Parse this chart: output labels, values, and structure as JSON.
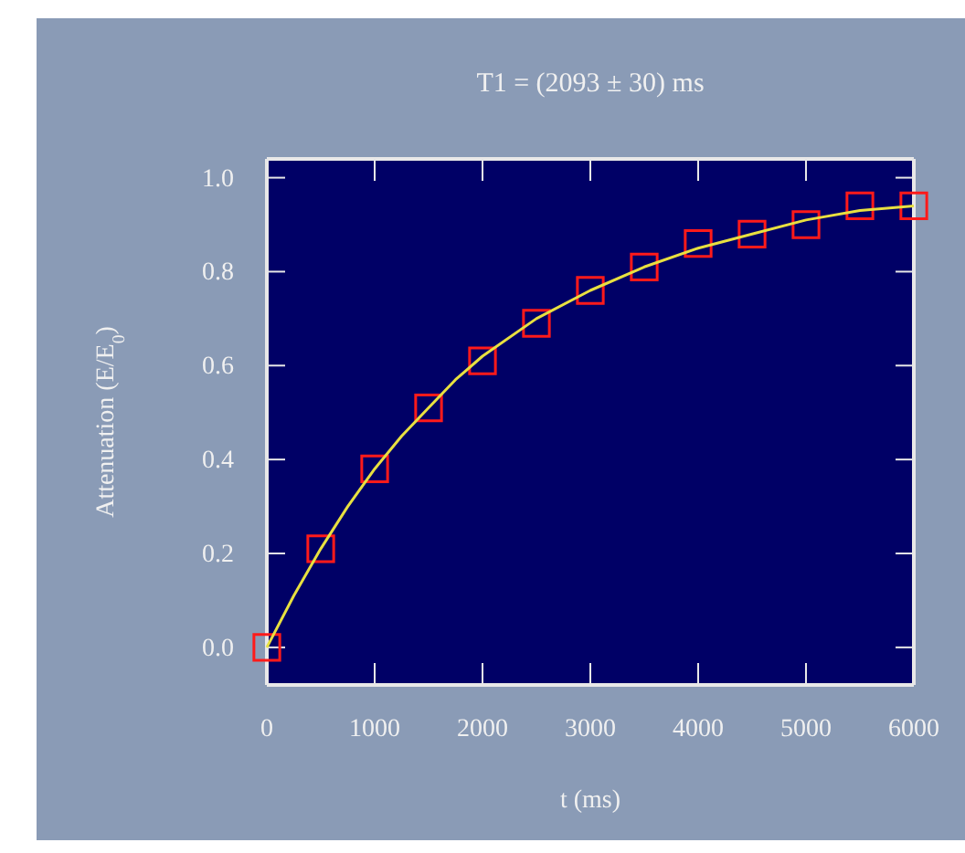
{
  "chart_data": {
    "type": "scatter",
    "title": "T1 = (2093 ± 30) ms",
    "xlabel": "t (ms)",
    "ylabel": "Attenuation (E/E$_{0}$)",
    "xlim": [
      0,
      6000
    ],
    "xticks": [
      0,
      1000,
      2000,
      3000,
      4000,
      5000,
      6000
    ],
    "ylim": [
      -0.08,
      1.04
    ],
    "yticks": [
      {
        "value": 0,
        "label": "0.0"
      },
      {
        "value": 0.2,
        "label": "0.2"
      },
      {
        "value": 0.4,
        "label": "0.4"
      },
      {
        "value": 0.6,
        "label": "0.6"
      },
      {
        "value": 0.8,
        "label": "0.8"
      },
      {
        "value": 1,
        "label": "1.0"
      }
    ],
    "grid": false,
    "marker": "square",
    "series": [
      {
        "color": "#ff1a1a",
        "x": [
          0,
          500,
          1000,
          1500,
          2000,
          2500,
          3000,
          3500,
          4000,
          4500,
          5000,
          5500,
          6000
        ],
        "values": [
          0.0,
          0.21,
          0.38,
          0.51,
          0.61,
          0.69,
          0.76,
          0.81,
          0.86,
          0.88,
          0.9,
          0.94,
          0.94
        ]
      },
      {
        "type": "line",
        "color": "#e8e040",
        "marker": "none",
        "line_style": "solid",
        "x": [
          0,
          250,
          500,
          750,
          1000,
          1250,
          1500,
          1750,
          2000,
          2500,
          3000,
          3500,
          4000,
          4500,
          5000,
          5500,
          6000
        ],
        "values": [
          0,
          0.11,
          0.21,
          0.3,
          0.38,
          0.45,
          0.51,
          0.57,
          0.62,
          0.7,
          0.76,
          0.81,
          0.85,
          0.88,
          0.91,
          0.93,
          0.94
        ]
      }
    ]
  }
}
